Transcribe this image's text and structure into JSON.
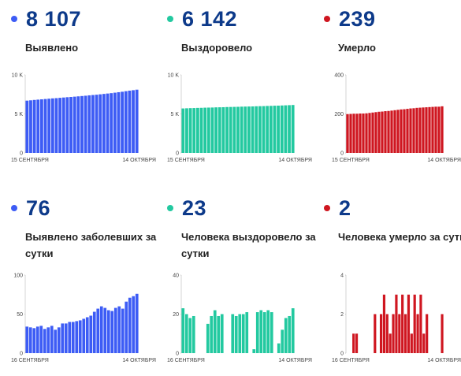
{
  "colors": {
    "blue": "#3d5cf5",
    "teal": "#23c9a0",
    "red": "#cf1620",
    "number": "#0d3a8a"
  },
  "panels": [
    {
      "id": "detected",
      "number": "8 107",
      "label": "Выявлено",
      "color": "#3d5cf5"
    },
    {
      "id": "recovered",
      "number": "6 142",
      "label": "Выздоровело",
      "color": "#23c9a0"
    },
    {
      "id": "died",
      "number": "239",
      "label": "Умерло",
      "color": "#cf1620"
    },
    {
      "id": "detected-daily",
      "number": "76",
      "label": "Выявлено заболевших за сутки",
      "color": "#3d5cf5"
    },
    {
      "id": "recovered-daily",
      "number": "23",
      "label": "Человека выздоровело за сутки",
      "color": "#23c9a0"
    },
    {
      "id": "died-daily",
      "number": "2",
      "label": "Человека умерло за сутки",
      "color": "#cf1620"
    }
  ],
  "chart_data": [
    {
      "type": "bar",
      "title": "Выявлено",
      "x_start_label": "15 СЕНТЯБРЯ",
      "x_end_label": "14 ОКТЯБРЯ",
      "ylim": [
        0,
        10000
      ],
      "yticks": [
        0,
        5000,
        10000
      ],
      "ytick_labels": [
        "0",
        "5 K",
        "10 K"
      ],
      "color": "#3d5cf5",
      "values": [
        6700,
        6740,
        6790,
        6830,
        6870,
        6910,
        6950,
        6990,
        7020,
        7060,
        7100,
        7140,
        7170,
        7210,
        7250,
        7290,
        7330,
        7380,
        7420,
        7460,
        7510,
        7560,
        7610,
        7660,
        7720,
        7780,
        7840,
        7910,
        7980,
        8040,
        8107
      ]
    },
    {
      "type": "bar",
      "title": "Выздоровело",
      "x_start_label": "15 СЕНТЯБРЯ",
      "x_end_label": "14 ОКТЯБРЯ",
      "ylim": [
        0,
        10000
      ],
      "yticks": [
        0,
        5000,
        10000
      ],
      "ytick_labels": [
        "0",
        "5 K",
        "10 K"
      ],
      "color": "#23c9a0",
      "values": [
        5700,
        5720,
        5740,
        5750,
        5770,
        5780,
        5800,
        5810,
        5820,
        5840,
        5850,
        5860,
        5880,
        5890,
        5900,
        5910,
        5930,
        5940,
        5950,
        5960,
        5980,
        5990,
        6000,
        6020,
        6030,
        6050,
        6060,
        6080,
        6100,
        6120,
        6142
      ]
    },
    {
      "type": "bar",
      "title": "Умерло",
      "x_start_label": "15 СЕНТЯБРЯ",
      "x_end_label": "14 ОКТЯБРЯ",
      "ylim": [
        0,
        400
      ],
      "yticks": [
        0,
        200,
        400
      ],
      "ytick_labels": [
        "0",
        "200",
        "400"
      ],
      "color": "#cf1620",
      "values": [
        199,
        200,
        201,
        201,
        202,
        202,
        203,
        205,
        207,
        209,
        211,
        212,
        214,
        215,
        217,
        219,
        221,
        223,
        224,
        226,
        228,
        229,
        231,
        232,
        233,
        234,
        235,
        236,
        237,
        237,
        239
      ]
    },
    {
      "type": "bar",
      "title": "Выявлено заболевших за сутки",
      "x_start_label": "16 СЕНТЯБРЯ",
      "x_end_label": "14 ОКТЯБРЯ",
      "ylim": [
        0,
        100
      ],
      "yticks": [
        0,
        50,
        100
      ],
      "ytick_labels": [
        "0",
        "50",
        "100"
      ],
      "color": "#3d5cf5",
      "values": [
        34,
        33,
        32,
        34,
        35,
        31,
        33,
        35,
        30,
        33,
        38,
        38,
        40,
        40,
        41,
        42,
        44,
        46,
        48,
        53,
        57,
        60,
        58,
        55,
        54,
        58,
        60,
        57,
        66,
        71,
        73,
        76
      ]
    },
    {
      "type": "bar",
      "title": "Человека выздоровело за сутки",
      "x_start_label": "16 СЕНТЯБРЯ",
      "x_end_label": "14 ОКТЯБРЯ",
      "ylim": [
        0,
        40
      ],
      "yticks": [
        0,
        20,
        40
      ],
      "ytick_labels": [
        "0",
        "20",
        "40"
      ],
      "color": "#23c9a0",
      "values": [
        23,
        20,
        18,
        19,
        0,
        0,
        0,
        15,
        19,
        22,
        19,
        20,
        0,
        0,
        20,
        19,
        20,
        20,
        21,
        0,
        2,
        21,
        22,
        21,
        22,
        21,
        0,
        5,
        12,
        18,
        19,
        23
      ]
    },
    {
      "type": "bar",
      "title": "Человека умерло за сутки",
      "x_start_label": "16 СЕНТЯБРЯ",
      "x_end_label": "14 ОКТЯБРЯ",
      "ylim": [
        0,
        4
      ],
      "yticks": [
        0,
        2,
        4
      ],
      "ytick_labels": [
        "0",
        "2",
        "4"
      ],
      "color": "#cf1620",
      "values": [
        0,
        0,
        1,
        1,
        0,
        0,
        0,
        0,
        0,
        2,
        0,
        2,
        3,
        2,
        1,
        2,
        3,
        2,
        3,
        2,
        3,
        1,
        3,
        2,
        3,
        1,
        2,
        0,
        0,
        0,
        0,
        2
      ]
    }
  ]
}
